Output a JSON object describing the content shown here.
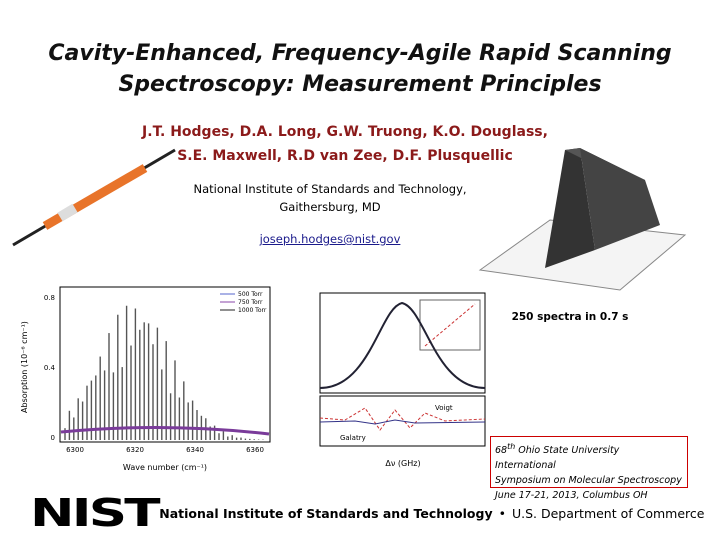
{
  "title": {
    "line1": "Cavity-Enhanced, Frequency-Agile Rapid Scanning",
    "line2": "Spectroscopy: Measurement Principles"
  },
  "authors": {
    "line1": "J.T. Hodges, D.A. Long, G.W. Truong, K.O. Douglass,",
    "line2": "S.E. Maxwell, R.D van Zee, D.F. Plusquellic"
  },
  "affiliation": {
    "line1": "National Institute of Standards and Technology,",
    "line2": "Gaithersburg, MD"
  },
  "email": "joseph.hodges@nist.gov",
  "surface_caption": "250 spectra in 0.7 s",
  "spectrum_plot": {
    "y_label": "Absorption (10⁻⁶ cm⁻¹)",
    "x_label": "Wave number (cm⁻¹)",
    "yticks": [
      "0",
      "0.4",
      "0.8"
    ],
    "xticks": [
      "6300",
      "6320",
      "6340",
      "6360"
    ],
    "legend": [
      "500 Torr",
      "750 Torr",
      "1000 Torr"
    ]
  },
  "fit_plot": {
    "x_label": "Δν (GHz)",
    "models": [
      "Voigt",
      "Galatry"
    ]
  },
  "conference": {
    "number": "68",
    "sup": "th",
    "line1": "Ohio State University International",
    "line2": "Symposium on Molecular Spectroscopy",
    "line3": "June 17-21, 2013, Columbus OH"
  },
  "footer": {
    "logo": "NIST",
    "institute": "National Institute of Standards and Technology",
    "separator": "•",
    "department": "U.S. Department of Commerce"
  }
}
